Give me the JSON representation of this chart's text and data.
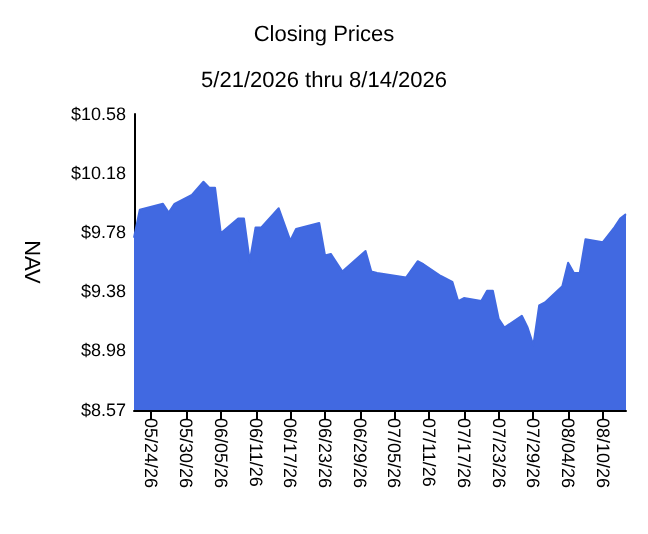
{
  "chart_data": {
    "type": "area",
    "title": "Closing Prices",
    "subtitle": "5/21/2026 thru 8/14/2026",
    "ylabel": "NAV",
    "x": [
      "2026-05-21",
      "2026-05-22",
      "2026-05-26",
      "2026-05-27",
      "2026-05-28",
      "2026-05-31",
      "2026-06-02",
      "2026-06-03",
      "2026-06-04",
      "2026-06-05",
      "2026-06-08",
      "2026-06-09",
      "2026-06-10",
      "2026-06-11",
      "2026-06-12",
      "2026-06-15",
      "2026-06-17",
      "2026-06-18",
      "2026-06-22",
      "2026-06-23",
      "2026-06-24",
      "2026-06-26",
      "2026-06-30",
      "2026-07-01",
      "2026-07-02",
      "2026-07-07",
      "2026-07-09",
      "2026-07-10",
      "2026-07-13",
      "2026-07-15",
      "2026-07-16",
      "2026-07-17",
      "2026-07-20",
      "2026-07-21",
      "2026-07-22",
      "2026-07-23",
      "2026-07-24",
      "2026-07-27",
      "2026-07-28",
      "2026-07-29",
      "2026-07-30",
      "2026-07-31",
      "2026-08-03",
      "2026-08-04",
      "2026-08-05",
      "2026-08-06",
      "2026-08-07",
      "2026-08-10",
      "2026-08-12",
      "2026-08-13",
      "2026-08-14"
    ],
    "series": [
      {
        "color": "#4169e1",
        "values": [
          9.74,
          9.93,
          9.97,
          9.91,
          9.97,
          10.03,
          10.12,
          10.08,
          10.08,
          9.77,
          9.87,
          9.87,
          9.58,
          9.81,
          9.81,
          9.94,
          9.72,
          9.8,
          9.84,
          9.62,
          9.63,
          9.51,
          9.65,
          9.51,
          9.5,
          9.47,
          9.58,
          9.56,
          9.48,
          9.44,
          9.31,
          9.33,
          9.31,
          9.38,
          9.38,
          9.19,
          9.13,
          9.21,
          9.13,
          9.01,
          9.28,
          9.3,
          9.41,
          9.57,
          9.5,
          9.5,
          9.73,
          9.71,
          9.81,
          9.87,
          9.9
        ]
      }
    ],
    "xlim": [
      "2026-05-21",
      "2026-08-14"
    ],
    "xticks": [
      {
        "value": "2026-05-24",
        "label": "05/24/26"
      },
      {
        "value": "2026-05-30",
        "label": "05/30/26"
      },
      {
        "value": "2026-06-05",
        "label": "06/05/26"
      },
      {
        "value": "2026-06-11",
        "label": "06/11/26"
      },
      {
        "value": "2026-06-17",
        "label": "06/17/26"
      },
      {
        "value": "2026-06-23",
        "label": "06/23/26"
      },
      {
        "value": "2026-06-29",
        "label": "06/29/26"
      },
      {
        "value": "2026-07-05",
        "label": "07/05/26"
      },
      {
        "value": "2026-07-11",
        "label": "07/11/26"
      },
      {
        "value": "2026-07-17",
        "label": "07/17/26"
      },
      {
        "value": "2026-07-23",
        "label": "07/23/26"
      },
      {
        "value": "2026-07-29",
        "label": "07/29/26"
      },
      {
        "value": "2026-08-04",
        "label": "08/04/26"
      },
      {
        "value": "2026-08-10",
        "label": "08/10/26"
      }
    ],
    "ylim": [
      8.57,
      10.58
    ],
    "yticks": [
      {
        "value": 8.57,
        "label": "$8.57"
      },
      {
        "value": 8.98,
        "label": "$8.98"
      },
      {
        "value": 9.38,
        "label": "$9.38"
      },
      {
        "value": 9.78,
        "label": "$9.78"
      },
      {
        "value": 10.18,
        "label": "$10.18"
      },
      {
        "value": 10.58,
        "label": "$10.58"
      }
    ],
    "grid": false
  }
}
